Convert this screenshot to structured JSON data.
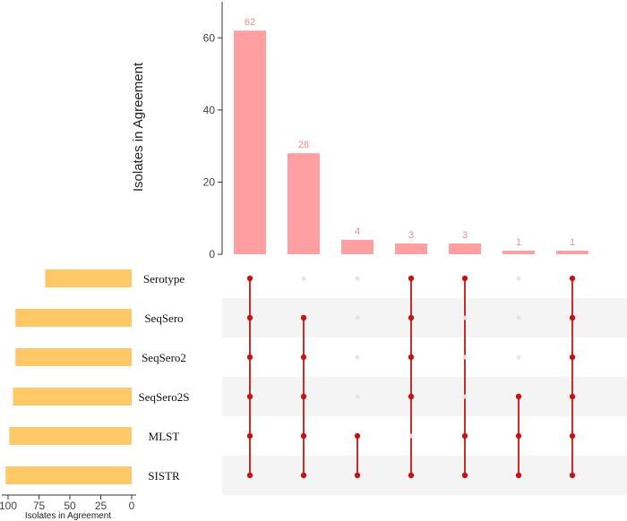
{
  "chart_data": {
    "type": "bar",
    "subtype": "upset",
    "ylabel": "Isolates in Agreement",
    "set_size_xlabel": "Isolates in Agreement",
    "ylim": [
      0,
      70
    ],
    "yticks": [
      0,
      20,
      40,
      60
    ],
    "set_size_ticks": [
      100,
      75,
      50,
      25,
      0
    ],
    "set_size_max": 100,
    "sets": [
      {
        "name": "Serotype",
        "size": 70
      },
      {
        "name": "SeqSero",
        "size": 94
      },
      {
        "name": "SeqSero2",
        "size": 94
      },
      {
        "name": "SeqSero2S",
        "size": 96
      },
      {
        "name": "MLST",
        "size": 99
      },
      {
        "name": "SISTR",
        "size": 102
      }
    ],
    "intersections": [
      {
        "value": 62,
        "sets": [
          "Serotype",
          "SeqSero",
          "SeqSero2",
          "SeqSero2S",
          "MLST",
          "SISTR"
        ]
      },
      {
        "value": 28,
        "sets": [
          "SeqSero",
          "SeqSero2",
          "SeqSero2S",
          "MLST",
          "SISTR"
        ]
      },
      {
        "value": 4,
        "sets": [
          "MLST",
          "SISTR"
        ]
      },
      {
        "value": 3,
        "sets": [
          "Serotype",
          "SeqSero",
          "SeqSero2",
          "SeqSero2S",
          "SISTR"
        ]
      },
      {
        "value": 3,
        "sets": [
          "Serotype",
          "MLST",
          "SISTR"
        ]
      },
      {
        "value": 1,
        "sets": [
          "SeqSero2S",
          "MLST",
          "SISTR"
        ]
      },
      {
        "value": 1,
        "sets": [
          "Serotype",
          "SeqSero",
          "SeqSero2",
          "SeqSero2S",
          "MLST",
          "SISTR"
        ]
      }
    ],
    "colors": {
      "intersection_bar": "#ff9fa1",
      "bar_label": "#f08a8c",
      "set_bar": "#ffc766",
      "dot_active": "#c41515",
      "dot_inactive": "#e4e4e4",
      "stripe": "#f4f4f4"
    },
    "grid": false
  }
}
